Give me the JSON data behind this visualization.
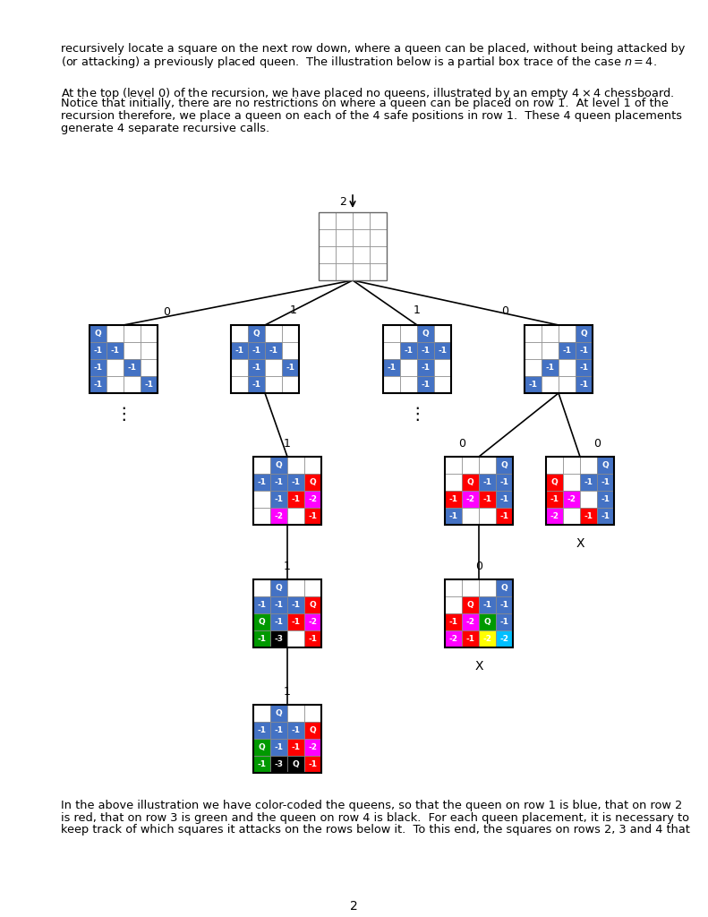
{
  "bg_color": "#ffffff",
  "BL": "#4472c4",
  "RD": "#ff0000",
  "GR": "#009900",
  "MG": "#ff00ff",
  "YL": "#ffff00",
  "BK": "#000000",
  "CY": "#00bfff",
  "W": "#ffffff",
  "cell_border": "#888888",
  "cell": 19,
  "para1_lines": [
    "recursively locate a square on the next row down, where a queen can be placed, without being attacked by",
    "(or attacking) a previously placed queen.  The illustration below is a partial box trace of the case $n = 4$."
  ],
  "para2_lines": [
    "At the top (level 0) of the recursion, we have placed no queens, illustrated by an empty $4 \\times 4$ chessboard.",
    "Notice that initially, there are no restrictions on where a queen can be placed on row 1.  At level 1 of the",
    "recursion therefore, we place a queen on each of the 4 safe positions in row 1.  These 4 queen placements",
    "generate 4 separate recursive calls."
  ],
  "para3_lines": [
    "In the above illustration we have color-coded the queens, so that the queen on row 1 is blue, that on row 2",
    "is red, that on row 3 is green and the queen on row 4 is black.  For each queen placement, it is necessary to",
    "keep track of which squares it attacks on the rows below it.  To this end, the squares on rows 2, 3 and 4 that"
  ]
}
